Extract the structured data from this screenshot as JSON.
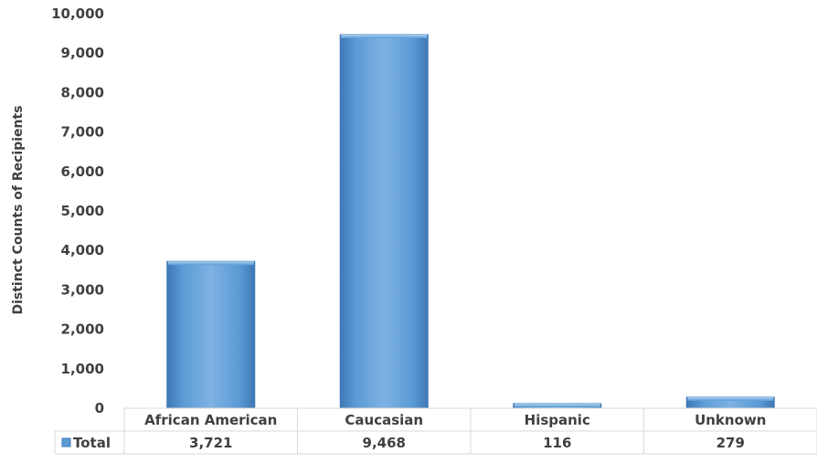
{
  "chart_data": {
    "type": "bar",
    "categories": [
      "African American",
      "Caucasian",
      "Hispanic",
      "Unknown"
    ],
    "series": [
      {
        "name": "Total",
        "values": [
          3721,
          9468,
          116,
          279
        ],
        "value_labels": [
          "3,721",
          "9,468",
          "116",
          "279"
        ]
      }
    ],
    "ylabel": "Distinct Counts of Recipients",
    "ylim": [
      0,
      10000
    ],
    "yticks": [
      0,
      1000,
      2000,
      3000,
      4000,
      5000,
      6000,
      7000,
      8000,
      9000,
      10000
    ],
    "ytick_labels": [
      "0",
      "1,000",
      "2,000",
      "3,000",
      "4,000",
      "5,000",
      "6,000",
      "7,000",
      "8,000",
      "9,000",
      "10,000"
    ],
    "grid": false,
    "legend": "data table",
    "bar_color": "#5B9BD5",
    "bar_highlight": "#8EC0EC",
    "bar_shadow": "#3F78B5",
    "table_border_color": "#D9D9D9"
  }
}
